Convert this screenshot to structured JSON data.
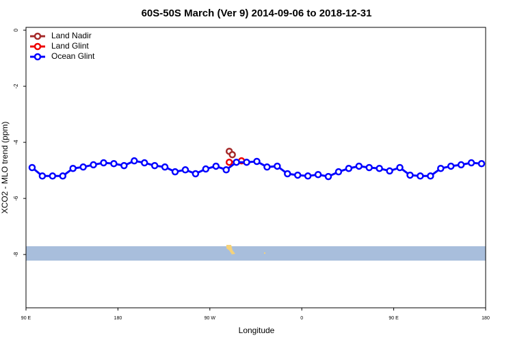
{
  "chart_data": {
    "type": "line",
    "title": "60S-50S March (Ver 9)   2014-09-06 to 2018-12-31",
    "x_label": "Longitude",
    "y_label": "XCO2 - MLO trend (ppm)",
    "xlim": [
      90,
      540
    ],
    "ylim": [
      -9.9,
      0.1
    ],
    "xticks": [
      {
        "value": 90,
        "label": "90 E"
      },
      180,
      {
        "value": 270,
        "label": "90 W"
      },
      {
        "value": 360,
        "label": "0"
      },
      {
        "value": 450,
        "label": "90 E"
      },
      {
        "value": 540,
        "label": "180"
      }
    ],
    "yticks": [
      0,
      -2,
      -4,
      -6,
      -8
    ],
    "legend": "top-left",
    "series": [
      {
        "name": "Land Nadir",
        "color": "#a52a2a",
        "x": [
          289,
          292
        ],
        "values": [
          -4.32,
          -4.44
        ]
      },
      {
        "name": "Land Glint",
        "color": "#ee0000",
        "x": [
          289,
          301
        ],
        "values": [
          -4.71,
          -4.66
        ]
      },
      {
        "name": "Ocean Glint",
        "color": "#0000ff",
        "x": [
          96,
          106,
          116,
          126,
          136,
          146,
          156,
          166,
          176,
          186,
          196,
          206,
          216,
          226,
          236,
          246,
          256,
          266,
          276,
          286,
          296,
          306,
          316,
          326,
          336,
          346,
          356,
          366,
          376,
          386,
          396,
          406,
          416,
          426,
          436,
          446,
          456,
          466,
          476,
          486,
          496,
          506,
          516,
          526,
          536
        ],
        "values": [
          -4.9,
          -5.2,
          -5.2,
          -5.2,
          -4.93,
          -4.88,
          -4.8,
          -4.73,
          -4.76,
          -4.83,
          -4.66,
          -4.73,
          -4.83,
          -4.88,
          -5.05,
          -4.98,
          -5.12,
          -4.95,
          -4.85,
          -4.98,
          -4.71,
          -4.71,
          -4.68,
          -4.88,
          -4.85,
          -5.12,
          -5.17,
          -5.2,
          -5.15,
          -5.22,
          -5.05,
          -4.93,
          -4.85,
          -4.9,
          -4.93,
          -5.02,
          -4.9,
          -5.17,
          -5.2,
          -5.2,
          -4.93,
          -4.85,
          -4.8,
          -4.73,
          -4.76
        ]
      }
    ]
  }
}
